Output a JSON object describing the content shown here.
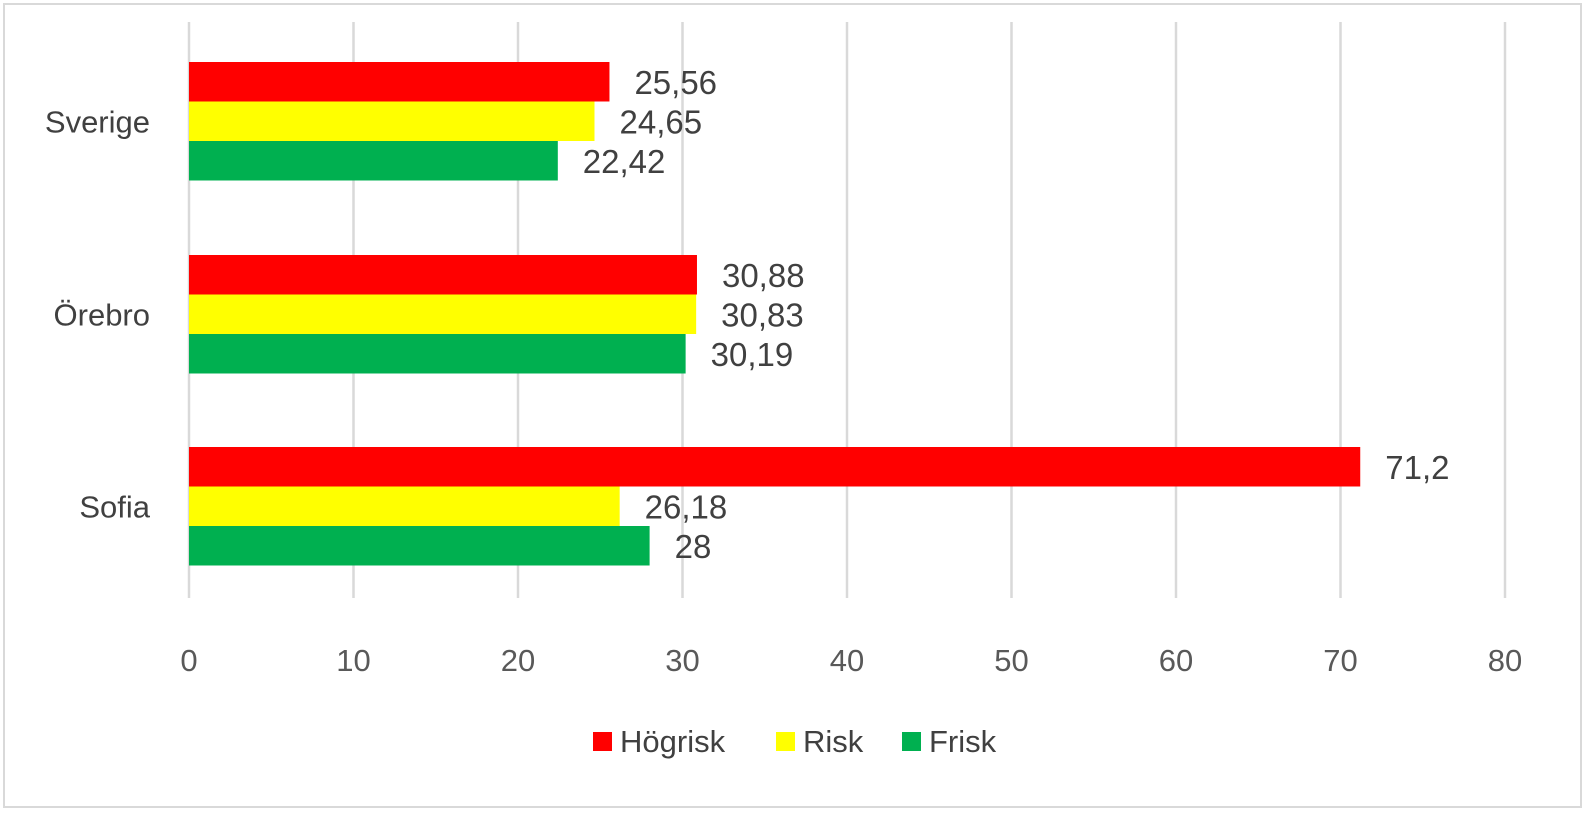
{
  "chart_data": {
    "type": "bar",
    "orientation": "horizontal",
    "categories": [
      "Sverige",
      "Örebro",
      "Sofia"
    ],
    "series": [
      {
        "name": "Högrisk",
        "color": "#ff0000",
        "values": [
          25.56,
          30.88,
          71.2
        ],
        "labels": [
          "25,56",
          "30,88",
          "71,2"
        ]
      },
      {
        "name": "Risk",
        "color": "#ffff00",
        "values": [
          24.65,
          30.83,
          26.18
        ],
        "labels": [
          "24,65",
          "30,83",
          "26,18"
        ]
      },
      {
        "name": "Frisk",
        "color": "#00b050",
        "values": [
          22.42,
          30.19,
          28
        ],
        "labels": [
          "22,42",
          "30,19",
          "28"
        ]
      }
    ],
    "xlim": [
      0,
      80
    ],
    "xticks": [
      0,
      10,
      20,
      30,
      40,
      50,
      60,
      70,
      80
    ],
    "grid": "vertical",
    "legend_position": "bottom",
    "title": "",
    "xlabel": "",
    "ylabel": ""
  }
}
